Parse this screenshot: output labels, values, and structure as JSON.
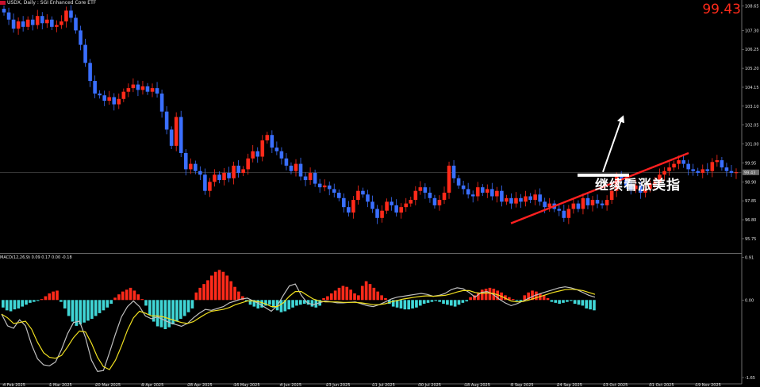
{
  "header": {
    "title": "USDX, Daily : SGI Enhanced Core ETF",
    "big_price": "99.43",
    "annotation": "继续看涨美指",
    "macd_label": "MACD(12,26,9) 0.09 0.17 0.00 -0.18"
  },
  "colors": {
    "background": "#000000",
    "bull": "#ff2a1a",
    "bear": "#3a6fff",
    "trendline": "#ff2020",
    "hist_pos": "#ff2a1a",
    "hist_neg": "#40d6d6",
    "macd_line": "#c0c0c0",
    "signal_line": "#f0e020",
    "arrow": "#ffffff"
  },
  "chart_data": [
    {
      "type": "candlestick",
      "title": "USDX, Daily",
      "x_ticks": [
        "4 Feb 2025",
        "1 Mar 2025",
        "20 Mar 2025",
        "9 Apr 2025",
        "28 Apr 2025",
        "16 May 2025",
        "4 Jun 2025",
        "23 Jun 2025",
        "11 Jul 2025",
        "30 Jul 2025",
        "18 Aug 2025",
        "5 Sep 2025",
        "24 Sep 2025",
        "13 Oct 2025",
        "31 Oct 2025",
        "19 Nov 2025"
      ],
      "y_ticks": [
        "108.65",
        "107.30",
        "106.25",
        "105.20",
        "104.15",
        "103.10",
        "102.05",
        "101.00",
        "99.95",
        "98.90",
        "97.85",
        "96.80",
        "95.75"
      ],
      "ylim": [
        95.0,
        108.9
      ],
      "current_price": "99.43",
      "closes": [
        108.3,
        107.9,
        107.4,
        107.8,
        107.5,
        107.9,
        107.6,
        108.1,
        107.7,
        107.9,
        107.5,
        107.6,
        107.8,
        108.4,
        108.0,
        107.3,
        106.5,
        105.5,
        104.5,
        103.8,
        103.7,
        103.4,
        103.6,
        103.2,
        103.5,
        103.9,
        104.1,
        104.3,
        104.0,
        104.2,
        103.9,
        104.1,
        103.8,
        102.8,
        101.8,
        100.9,
        102.5,
        100.5,
        99.6,
        99.9,
        99.5,
        99.3,
        98.4,
        98.9,
        99.3,
        99.0,
        99.4,
        99.1,
        99.8,
        99.4,
        99.6,
        100.2,
        100.6,
        100.3,
        101.2,
        101.5,
        100.8,
        100.6,
        100.2,
        99.8,
        99.5,
        99.9,
        99.2,
        99.0,
        99.4,
        98.8,
        98.6,
        98.7,
        98.5,
        98.3,
        98.0,
        97.5,
        97.2,
        97.9,
        98.4,
        98.2,
        97.8,
        97.4,
        96.9,
        97.3,
        97.8,
        97.6,
        97.2,
        97.5,
        97.7,
        97.9,
        98.4,
        98.6,
        98.3,
        98.0,
        97.6,
        97.9,
        98.3,
        99.8,
        99.1,
        98.7,
        98.5,
        98.2,
        98.1,
        98.6,
        98.3,
        98.5,
        98.1,
        98.4,
        97.8,
        98.0,
        97.7,
        98.0,
        97.8,
        98.1,
        97.9,
        98.2,
        97.8,
        97.5,
        97.7,
        97.4,
        97.3,
        96.9,
        97.4,
        97.7,
        97.4,
        98.0,
        97.6,
        97.9,
        97.7,
        97.6,
        97.9,
        98.4,
        99.2,
        99.0,
        98.7,
        98.5,
        98.7,
        98.3,
        98.5,
        98.8,
        98.9,
        99.3,
        99.5,
        99.7,
        99.9,
        100.1,
        99.9,
        99.6,
        99.5,
        99.4,
        99.6,
        99.5,
        100.0,
        100.1,
        99.7,
        99.5,
        99.4,
        99.43
      ],
      "trendline": {
        "from": {
          "x": "5 Sep 2025",
          "y": 96.6
        },
        "to": {
          "x": "1 Dec 2025",
          "y": 100.5
        }
      },
      "arrow": {
        "from_y": 99.45,
        "to_y": 102.6
      }
    },
    {
      "type": "macd",
      "params": "12,26,9",
      "y_ticks": [
        "0.91",
        "0.00",
        "-1.65"
      ],
      "ylim": [
        -1.75,
        0.95
      ],
      "histogram": [
        -0.16,
        -0.22,
        -0.24,
        -0.2,
        -0.18,
        -0.14,
        -0.1,
        -0.06,
        -0.04,
        -0.02,
        0.02,
        0.08,
        0.14,
        0.18,
        0.2,
        -0.04,
        -0.18,
        -0.34,
        -0.46,
        -0.55,
        -0.52,
        -0.48,
        -0.44,
        -0.4,
        -0.34,
        -0.28,
        -0.22,
        -0.16,
        -0.08,
        0.05,
        0.12,
        0.18,
        0.22,
        0.26,
        0.2,
        0.12,
        0.02,
        -0.12,
        -0.32,
        -0.46,
        -0.56,
        -0.58,
        -0.62,
        -0.58,
        -0.52,
        -0.46,
        -0.4,
        -0.34,
        -0.26,
        -0.18,
        0.16,
        0.26,
        0.34,
        0.42,
        0.52,
        0.6,
        0.64,
        0.6,
        0.52,
        0.4,
        0.28,
        0.18,
        0.08,
        -0.02,
        -0.1,
        -0.14,
        -0.18,
        -0.16,
        -0.12,
        -0.1,
        -0.16,
        -0.22,
        -0.26,
        -0.24,
        -0.2,
        -0.16,
        -0.12,
        -0.1,
        -0.08,
        -0.1,
        -0.14,
        -0.16,
        -0.12,
        0.04,
        0.08,
        0.14,
        0.2,
        0.26,
        0.3,
        0.28,
        0.22,
        0.14,
        0.1,
        0.3,
        0.4,
        0.34,
        0.26,
        0.18,
        0.1,
        0.04,
        -0.08,
        -0.14,
        -0.16,
        -0.18,
        -0.2,
        -0.2,
        -0.18,
        -0.16,
        -0.12,
        -0.08,
        -0.06,
        -0.04,
        -0.02,
        -0.04,
        -0.08,
        -0.1,
        -0.12,
        -0.14,
        -0.1,
        -0.06,
        -0.03,
        0.06,
        0.1,
        0.16,
        0.22,
        0.24,
        0.26,
        0.24,
        0.2,
        0.16,
        0.1,
        0.06,
        0.02,
        -0.02,
        -0.04,
        0.1,
        0.16,
        0.2,
        0.18,
        0.14,
        0.1,
        0.04,
        -0.04,
        -0.06,
        -0.08,
        -0.06,
        -0.04,
        -0.02,
        -0.08,
        -0.1,
        -0.12,
        -0.18,
        -0.2,
        -0.22
      ],
      "macd_line": [
        -0.3,
        -0.55,
        -0.6,
        -0.42,
        -0.55,
        -0.95,
        -1.25,
        -1.38,
        -1.4,
        -1.32,
        -1.05,
        -0.72,
        -0.48,
        -0.45,
        -0.8,
        -1.28,
        -1.52,
        -1.5,
        -1.12,
        -0.72,
        -0.36,
        -0.14,
        -0.02,
        -0.14,
        -0.34,
        -0.4,
        -0.36,
        -0.42,
        -0.48,
        -0.52,
        -0.56,
        -0.5,
        -0.38,
        -0.28,
        -0.2,
        -0.22,
        -0.18,
        -0.14,
        -0.06,
        -0.02,
        0.02,
        0.04,
        -0.02,
        -0.08,
        -0.16,
        -0.24,
        -0.12,
        0.1,
        0.3,
        0.34,
        0.1,
        -0.06,
        -0.1,
        -0.06,
        -0.02,
        -0.04,
        -0.06,
        -0.06,
        -0.05,
        -0.04,
        -0.08,
        -0.12,
        -0.14,
        -0.1,
        -0.04,
        0.02,
        0.06,
        0.08,
        0.1,
        0.12,
        0.14,
        0.12,
        0.08,
        0.1,
        0.14,
        0.22,
        0.26,
        0.24,
        0.16,
        0.06,
        0.16,
        0.18,
        0.12,
        0.02,
        -0.06,
        -0.12,
        -0.08,
        -0.02,
        0.04,
        0.1,
        0.14,
        0.18,
        0.22,
        0.26,
        0.28,
        0.26,
        0.22,
        0.16,
        0.1,
        0.06
      ],
      "signal_line": [
        -0.3,
        -0.38,
        -0.5,
        -0.48,
        -0.45,
        -0.62,
        -0.9,
        -1.12,
        -1.22,
        -1.24,
        -1.18,
        -1.0,
        -0.8,
        -0.66,
        -0.68,
        -0.92,
        -1.22,
        -1.42,
        -1.48,
        -1.28,
        -0.98,
        -0.64,
        -0.38,
        -0.24,
        -0.28,
        -0.34,
        -0.34,
        -0.36,
        -0.4,
        -0.44,
        -0.48,
        -0.5,
        -0.46,
        -0.38,
        -0.3,
        -0.24,
        -0.22,
        -0.2,
        -0.16,
        -0.1,
        -0.06,
        -0.02,
        -0.02,
        -0.04,
        -0.08,
        -0.14,
        -0.14,
        -0.06,
        0.08,
        0.18,
        0.18,
        0.1,
        0.02,
        -0.02,
        -0.04,
        -0.04,
        -0.04,
        -0.05,
        -0.05,
        -0.05,
        -0.06,
        -0.08,
        -0.1,
        -0.1,
        -0.08,
        -0.04,
        -0.01,
        0.02,
        0.04,
        0.06,
        0.08,
        0.09,
        0.08,
        0.09,
        0.1,
        0.13,
        0.17,
        0.2,
        0.2,
        0.16,
        0.14,
        0.15,
        0.14,
        0.1,
        0.04,
        -0.02,
        -0.04,
        -0.03,
        0.0,
        0.04,
        0.08,
        0.12,
        0.16,
        0.19,
        0.22,
        0.23,
        0.22,
        0.2,
        0.16,
        0.12
      ]
    }
  ]
}
